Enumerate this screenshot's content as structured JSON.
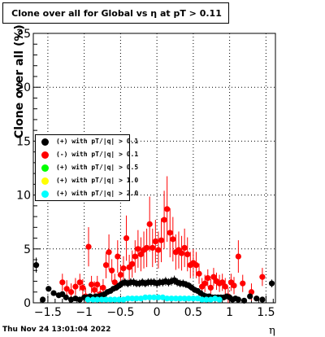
{
  "header": {
    "title": "Clone  over all for Global vs  η at pT > 0.11"
  },
  "footer": {
    "timestamp": "Thu Nov 24 13:01:04 2022"
  },
  "chart_data": {
    "type": "scatter",
    "title": "Clone  over all for Global vs  η at pT > 0.11",
    "xlabel": "η",
    "ylabel": "Clone  over all (%)",
    "xlim": [
      -1.7,
      1.63
    ],
    "ylim": [
      0,
      25
    ],
    "x_ticks": [
      -1.5,
      -1,
      -0.5,
      0,
      0.5,
      1,
      1.5
    ],
    "x_tick_labels": [
      "−1.5",
      "−1",
      "−0.5",
      "0",
      "0.5",
      "1",
      "1.5"
    ],
    "y_ticks": [
      0,
      5,
      10,
      15,
      20,
      25
    ],
    "y_tick_labels": [
      "0",
      "5",
      "10",
      "15",
      "20",
      "25"
    ],
    "grid": true,
    "legend_position": "middle-left",
    "series": [
      {
        "name": "(+) with pT/|q| > 0.1",
        "color": "#000000",
        "x": [
          -1.66,
          -1.57,
          -1.49,
          -1.42,
          -1.35,
          -1.3,
          -1.25,
          -1.18,
          -1.12,
          -1.06,
          -1.0,
          -0.96,
          -0.92,
          -0.88,
          -0.84,
          -0.8,
          -0.76,
          -0.72,
          -0.68,
          -0.64,
          -0.6,
          -0.56,
          -0.52,
          -0.48,
          -0.44,
          -0.4,
          -0.36,
          -0.32,
          -0.28,
          -0.24,
          -0.2,
          -0.16,
          -0.12,
          -0.08,
          -0.04,
          0.0,
          0.04,
          0.08,
          0.12,
          0.16,
          0.2,
          0.24,
          0.28,
          0.32,
          0.36,
          0.4,
          0.44,
          0.48,
          0.52,
          0.56,
          0.6,
          0.64,
          0.68,
          0.72,
          0.76,
          0.8,
          0.84,
          0.88,
          0.92,
          0.96,
          1.0,
          1.04,
          1.08,
          1.12,
          1.2,
          1.28,
          1.37,
          1.45,
          1.58
        ],
        "y": [
          3.5,
          0.3,
          1.3,
          0.9,
          0.7,
          0.8,
          0.5,
          0.3,
          0.4,
          0.3,
          0.5,
          0.5,
          0.6,
          0.5,
          0.6,
          0.6,
          0.7,
          0.8,
          1.0,
          1.1,
          1.3,
          1.4,
          1.6,
          1.8,
          1.9,
          1.8,
          1.9,
          1.9,
          1.8,
          1.8,
          1.9,
          1.8,
          1.9,
          1.9,
          1.9,
          1.8,
          1.9,
          1.9,
          2.0,
          1.9,
          2.0,
          2.1,
          1.9,
          1.8,
          1.8,
          1.7,
          1.6,
          1.4,
          1.2,
          1.1,
          0.9,
          0.7,
          0.6,
          0.6,
          0.5,
          0.5,
          0.5,
          0.5,
          0.5,
          0.6,
          0.5,
          0.3,
          0.4,
          0.3,
          0.2,
          0.6,
          0.4,
          0.3,
          1.8
        ]
      },
      {
        "name": "(-) with pT/|q| > 0.1",
        "color": "#ff0000",
        "x": [
          -1.3,
          -1.24,
          -1.18,
          -1.12,
          -1.06,
          -1.02,
          -0.98,
          -0.94,
          -0.9,
          -0.86,
          -0.82,
          -0.78,
          -0.74,
          -0.7,
          -0.66,
          -0.62,
          -0.58,
          -0.54,
          -0.5,
          -0.46,
          -0.42,
          -0.38,
          -0.34,
          -0.3,
          -0.26,
          -0.22,
          -0.18,
          -0.14,
          -0.1,
          -0.06,
          -0.02,
          0.02,
          0.06,
          0.1,
          0.14,
          0.18,
          0.22,
          0.26,
          0.3,
          0.34,
          0.38,
          0.42,
          0.46,
          0.5,
          0.54,
          0.58,
          0.62,
          0.66,
          0.7,
          0.74,
          0.78,
          0.82,
          0.86,
          0.9,
          0.94,
          0.98,
          1.02,
          1.06,
          1.12,
          1.18,
          1.3,
          1.45
        ],
        "y": [
          1.9,
          1.3,
          1.0,
          1.5,
          1.9,
          1.4,
          0.6,
          5.2,
          1.7,
          1.2,
          1.7,
          0.8,
          1.4,
          3.5,
          4.7,
          3.0,
          1.9,
          4.3,
          2.6,
          3.2,
          6.0,
          3.3,
          3.6,
          4.3,
          5.0,
          4.5,
          4.9,
          5.1,
          7.3,
          5.1,
          5.7,
          4.9,
          5.8,
          7.7,
          8.7,
          6.5,
          5.9,
          4.7,
          4.9,
          4.6,
          5.1,
          4.5,
          3.5,
          3.7,
          3.5,
          2.7,
          1.5,
          1.8,
          2.3,
          1.4,
          2.4,
          2.0,
          1.8,
          1.9,
          1.5,
          0.6,
          1.9,
          1.6,
          4.3,
          1.8,
          1.0,
          2.4
        ]
      },
      {
        "name": "(+) with pT/|q| > 0.5",
        "color": "#00ff00",
        "x": [],
        "y": []
      },
      {
        "name": "(+) with pT/|q| > 1.0",
        "color": "#ffff00",
        "x": [],
        "y": []
      },
      {
        "name": "(+) with pT/|q| > 2.0",
        "color": "#00ffff",
        "x": [
          -0.95,
          -0.88,
          -0.82,
          -0.76,
          -0.7,
          -0.64,
          -0.58,
          -0.52,
          -0.46,
          -0.4,
          -0.34,
          -0.28,
          -0.22,
          -0.16,
          -0.1,
          -0.04,
          0.02,
          0.08,
          0.14,
          0.2,
          0.26,
          0.32,
          0.38,
          0.44,
          0.5,
          0.56,
          0.62,
          0.68,
          0.74,
          0.8,
          0.86
        ],
        "y": [
          0.3,
          0.3,
          0.3,
          0.3,
          0.3,
          0.3,
          0.3,
          0.3,
          0.3,
          0.4,
          0.4,
          0.4,
          0.4,
          0.5,
          0.5,
          0.5,
          0.5,
          0.5,
          0.4,
          0.4,
          0.4,
          0.4,
          0.4,
          0.4,
          0.4,
          0.4,
          0.3,
          0.3,
          0.3,
          0.4,
          0.3
        ]
      }
    ]
  }
}
